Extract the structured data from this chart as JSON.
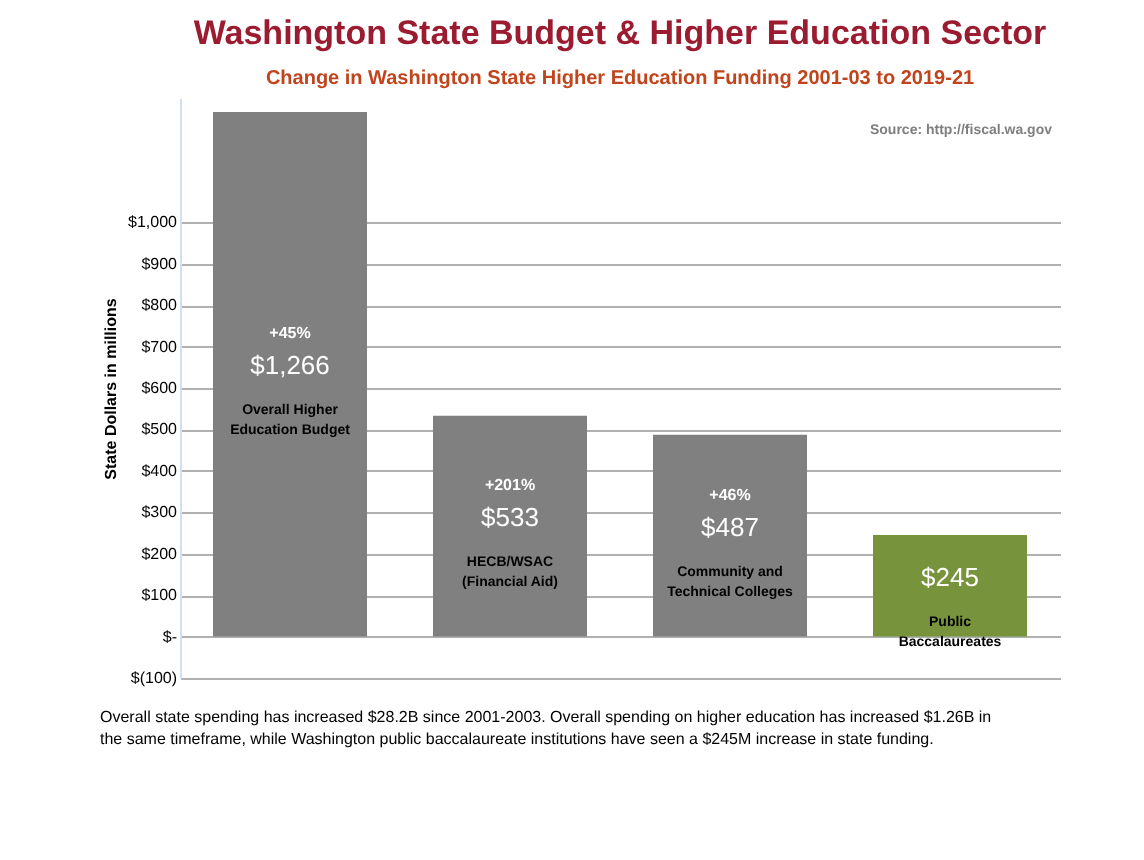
{
  "chart_data": {
    "type": "bar",
    "title": "Washington State Budget & Higher Education Sector",
    "subtitle": "Change in Washington State Higher Education Funding 2001-03 to 2019-21",
    "ylabel": "State Dollars in millions",
    "categories": [
      "Overall Higher Education Budget",
      "HECB/WSAC (Financial Aid)",
      "Community and Technical Colleges",
      "Public Baccalaureates"
    ],
    "values": [
      1266,
      533,
      487,
      245
    ],
    "colors": [
      "#808080",
      "#808080",
      "#808080",
      "#77933c"
    ],
    "value_labels": [
      "$1,266",
      "$533",
      "$487",
      "$245"
    ],
    "ylim": [
      -100,
      1300
    ],
    "yticks": [
      {
        "value": -100,
        "label": "$(100)"
      },
      {
        "value": 0,
        "label": "$-"
      },
      {
        "value": 100,
        "label": "$100"
      },
      {
        "value": 200,
        "label": "$200"
      },
      {
        "value": 300,
        "label": "$300"
      },
      {
        "value": 400,
        "label": "$400"
      },
      {
        "value": 500,
        "label": "$500"
      },
      {
        "value": 600,
        "label": "$600"
      },
      {
        "value": 700,
        "label": "$700"
      },
      {
        "value": 800,
        "label": "$800"
      },
      {
        "value": 900,
        "label": "$900"
      },
      {
        "value": 1000,
        "label": "$1,000"
      }
    ],
    "grid": "y",
    "tick_labels": "y",
    "annotations": [
      "+45%",
      "+201%",
      "+46%",
      "Source: http://fiscal.wa.gov",
      "Overall state spending has increased  $28.2B since 2001-2003. Overall spending on higher education has increased $1.26B in the same timeframe, while Washington public baccalaureate institutions have seen a $245M increase in state funding."
    ]
  }
}
